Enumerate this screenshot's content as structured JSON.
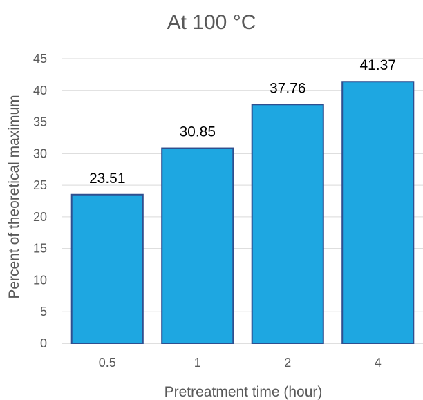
{
  "chart_data": {
    "type": "bar",
    "title": "At 100 °C",
    "xlabel": "Pretreatment time (hour)",
    "ylabel": "Percent of theoretical maximum",
    "categories": [
      "0.5",
      "1",
      "2",
      "4"
    ],
    "values": [
      23.51,
      30.85,
      37.76,
      41.37
    ],
    "data_labels": [
      "23.51",
      "30.85",
      "37.76",
      "41.37"
    ],
    "ylim": [
      0,
      45
    ],
    "yticks": [
      "0",
      "5",
      "10",
      "15",
      "20",
      "25",
      "30",
      "35",
      "40",
      "45"
    ],
    "grid": true,
    "legend": "none",
    "bar_color": "#1ea7e1",
    "bar_edge_color": "#2f4f8f"
  }
}
